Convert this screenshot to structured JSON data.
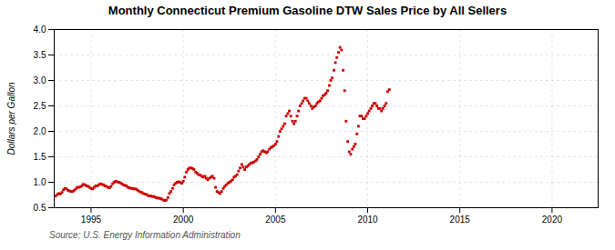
{
  "chart_data": {
    "type": "scatter",
    "title": "Monthly Connecticut Premium Gasoline DTW Sales Price by All Sellers",
    "ylabel": "Dollars per Gallon",
    "annotations": [
      "Source: U.S. Energy Information Administration"
    ],
    "color": "#cc0000",
    "marker": "square",
    "grid": true,
    "xlim": [
      1993.0,
      2022.5
    ],
    "ylim": [
      0.5,
      4.0
    ],
    "xticks": [
      1995,
      2000,
      2005,
      2010,
      2015,
      2020
    ],
    "yticks": [
      0.5,
      {
        "value": 1,
        "label": "1.0"
      },
      1.5,
      {
        "value": 2,
        "label": "2.0"
      },
      2.5,
      {
        "value": 3,
        "label": "3.0"
      },
      3.5,
      {
        "value": 4,
        "label": "4.0"
      }
    ],
    "x": [
      1993.08,
      1993.17,
      1993.25,
      1993.33,
      1993.42,
      1993.5,
      1993.58,
      1993.67,
      1993.75,
      1993.83,
      1993.92,
      1994.0,
      1994.08,
      1994.17,
      1994.25,
      1994.33,
      1994.42,
      1994.5,
      1994.58,
      1994.67,
      1994.75,
      1994.83,
      1994.92,
      1995.0,
      1995.08,
      1995.17,
      1995.25,
      1995.33,
      1995.42,
      1995.5,
      1995.58,
      1995.67,
      1995.75,
      1995.83,
      1995.92,
      1996.0,
      1996.08,
      1996.17,
      1996.25,
      1996.33,
      1996.42,
      1996.5,
      1996.58,
      1996.67,
      1996.75,
      1996.83,
      1996.92,
      1997.0,
      1997.08,
      1997.17,
      1997.25,
      1997.33,
      1997.42,
      1997.5,
      1997.58,
      1997.67,
      1997.75,
      1997.83,
      1997.92,
      1998.0,
      1998.08,
      1998.17,
      1998.25,
      1998.33,
      1998.42,
      1998.5,
      1998.58,
      1998.67,
      1998.75,
      1998.83,
      1998.92,
      1999.0,
      1999.08,
      1999.17,
      1999.25,
      1999.33,
      1999.42,
      1999.5,
      1999.58,
      1999.67,
      1999.75,
      1999.83,
      1999.92,
      2000.0,
      2000.08,
      2000.17,
      2000.25,
      2000.33,
      2000.42,
      2000.5,
      2000.58,
      2000.67,
      2000.75,
      2000.83,
      2000.92,
      2001.0,
      2001.08,
      2001.17,
      2001.25,
      2001.33,
      2001.42,
      2001.5,
      2001.58,
      2001.67,
      2001.75,
      2001.83,
      2001.92,
      2002.0,
      2002.08,
      2002.17,
      2002.25,
      2002.33,
      2002.42,
      2002.5,
      2002.58,
      2002.67,
      2002.75,
      2002.83,
      2002.92,
      2003.0,
      2003.08,
      2003.17,
      2003.25,
      2003.33,
      2003.42,
      2003.5,
      2003.58,
      2003.67,
      2003.75,
      2003.83,
      2003.92,
      2004.0,
      2004.08,
      2004.17,
      2004.25,
      2004.33,
      2004.42,
      2004.5,
      2004.58,
      2004.67,
      2004.75,
      2004.83,
      2004.92,
      2005.0,
      2005.08,
      2005.17,
      2005.25,
      2005.33,
      2005.42,
      2005.5,
      2005.58,
      2005.67,
      2005.75,
      2005.83,
      2005.92,
      2006.0,
      2006.08,
      2006.17,
      2006.25,
      2006.33,
      2006.42,
      2006.5,
      2006.58,
      2006.67,
      2006.75,
      2006.83,
      2006.92,
      2007.0,
      2007.08,
      2007.17,
      2007.25,
      2007.33,
      2007.42,
      2007.5,
      2007.58,
      2007.67,
      2007.75,
      2007.83,
      2007.92,
      2008.0,
      2008.08,
      2008.17,
      2008.25,
      2008.33,
      2008.42,
      2008.5,
      2008.58,
      2008.67,
      2008.75,
      2008.83,
      2008.92,
      2009.0,
      2009.08,
      2009.17,
      2009.25,
      2009.33,
      2009.42,
      2009.5,
      2009.58,
      2009.67,
      2009.75,
      2009.83,
      2009.92,
      2010.0,
      2010.08,
      2010.17,
      2010.25,
      2010.33,
      2010.42,
      2010.5,
      2010.58,
      2010.67,
      2010.75,
      2010.83,
      2010.92,
      2011.0,
      2011.08,
      2011.17
    ],
    "values": [
      0.73,
      0.76,
      0.78,
      0.77,
      0.8,
      0.85,
      0.88,
      0.87,
      0.84,
      0.83,
      0.82,
      0.82,
      0.84,
      0.87,
      0.9,
      0.9,
      0.91,
      0.93,
      0.96,
      0.95,
      0.93,
      0.92,
      0.9,
      0.88,
      0.87,
      0.9,
      0.93,
      0.93,
      0.95,
      0.97,
      0.96,
      0.95,
      0.93,
      0.92,
      0.9,
      0.89,
      0.92,
      0.97,
      1.0,
      1.02,
      1.01,
      1.0,
      0.99,
      0.97,
      0.95,
      0.94,
      0.93,
      0.9,
      0.89,
      0.88,
      0.88,
      0.87,
      0.87,
      0.85,
      0.83,
      0.81,
      0.8,
      0.78,
      0.77,
      0.76,
      0.74,
      0.73,
      0.73,
      0.72,
      0.72,
      0.7,
      0.69,
      0.69,
      0.68,
      0.67,
      0.65,
      0.64,
      0.65,
      0.7,
      0.78,
      0.82,
      0.88,
      0.95,
      0.98,
      1.0,
      1.01,
      1.0,
      0.98,
      1.02,
      1.1,
      1.2,
      1.25,
      1.28,
      1.28,
      1.27,
      1.25,
      1.2,
      1.18,
      1.15,
      1.14,
      1.12,
      1.1,
      1.12,
      1.08,
      1.05,
      1.08,
      1.1,
      1.12,
      1.08,
      0.9,
      0.82,
      0.8,
      0.78,
      0.82,
      0.88,
      0.92,
      0.95,
      0.98,
      1.0,
      1.02,
      1.05,
      1.1,
      1.12,
      1.15,
      1.22,
      1.28,
      1.35,
      1.3,
      1.25,
      1.3,
      1.32,
      1.35,
      1.38,
      1.38,
      1.4,
      1.42,
      1.45,
      1.5,
      1.55,
      1.6,
      1.62,
      1.6,
      1.58,
      1.6,
      1.65,
      1.68,
      1.7,
      1.72,
      1.75,
      1.8,
      1.9,
      2.0,
      2.05,
      2.1,
      2.15,
      2.3,
      2.35,
      2.4,
      2.3,
      2.2,
      2.15,
      2.2,
      2.3,
      2.4,
      2.5,
      2.55,
      2.6,
      2.65,
      2.65,
      2.6,
      2.55,
      2.5,
      2.45,
      2.48,
      2.5,
      2.55,
      2.58,
      2.6,
      2.65,
      2.7,
      2.72,
      2.75,
      2.8,
      2.9,
      3.0,
      3.05,
      3.2,
      3.35,
      3.45,
      3.55,
      3.65,
      3.6,
      3.2,
      2.8,
      2.2,
      1.8,
      1.6,
      1.55,
      1.65,
      1.7,
      1.75,
      1.95,
      2.1,
      2.3,
      2.3,
      2.25,
      2.25,
      2.3,
      2.35,
      2.4,
      2.45,
      2.5,
      2.55,
      2.55,
      2.5,
      2.45,
      2.45,
      2.4,
      2.45,
      2.5,
      2.55,
      2.78,
      2.82
    ]
  }
}
